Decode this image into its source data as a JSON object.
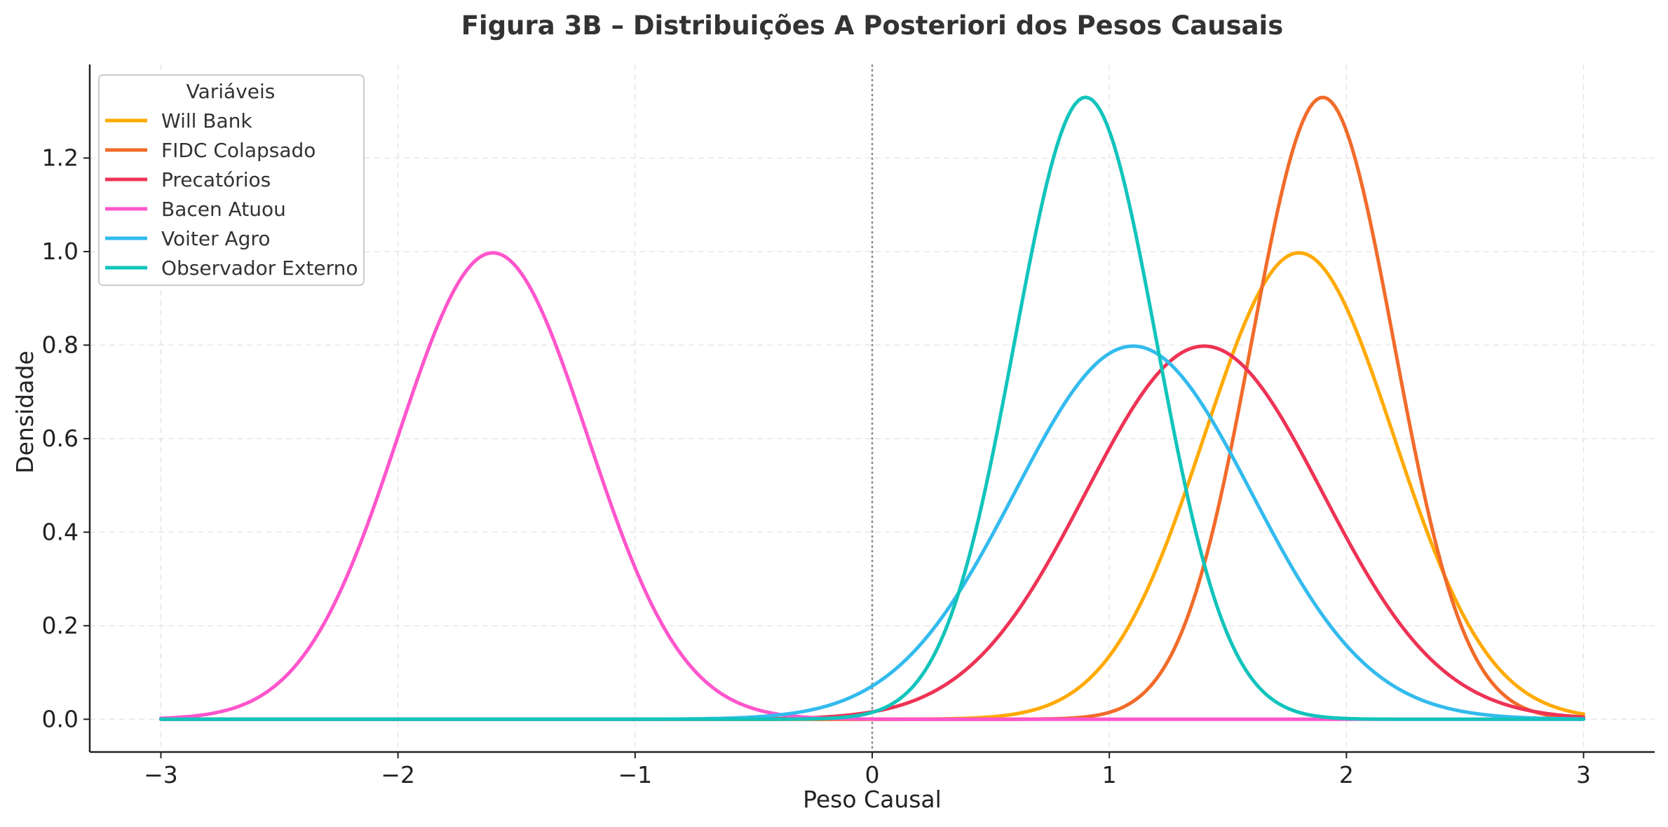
{
  "chart_data": {
    "type": "line",
    "title": "Figura 3B – Distribuições A Posteriori dos Pesos Causais",
    "xlabel": "Peso Causal",
    "ylabel": "Densidade",
    "xlim": [
      -3.3,
      3.3
    ],
    "ylim": [
      -0.07,
      1.4
    ],
    "xticks": [
      -3,
      -2,
      -1,
      0,
      1,
      2,
      3
    ],
    "xtick_labels": [
      "−3",
      "−2",
      "−1",
      "0",
      "1",
      "2",
      "3"
    ],
    "yticks": [
      0.0,
      0.2,
      0.4,
      0.6,
      0.8,
      1.0,
      1.2
    ],
    "ytick_labels": [
      "0.0",
      "0.2",
      "0.4",
      "0.6",
      "0.8",
      "1.0",
      "1.2"
    ],
    "x_range": [
      -3,
      3
    ],
    "grid": true,
    "vline_x": 0,
    "legend": {
      "title": "Variáveis",
      "position": "top-left"
    },
    "series": [
      {
        "name": "Will Bank",
        "color": "#FFAA00",
        "distribution": "normal",
        "mean": 1.8,
        "std": 0.4,
        "peak": 0.997
      },
      {
        "name": "FIDC Colapsado",
        "color": "#F26B2A",
        "distribution": "normal",
        "mean": 1.9,
        "std": 0.3,
        "peak": 1.33
      },
      {
        "name": "Precatórios",
        "color": "#EE3355",
        "distribution": "normal",
        "mean": 1.4,
        "std": 0.5,
        "peak": 0.798
      },
      {
        "name": "Bacen Atuou",
        "color": "#FF55CC",
        "distribution": "normal",
        "mean": -1.6,
        "std": 0.4,
        "peak": 0.997
      },
      {
        "name": "Voiter Agro",
        "color": "#33BBEE",
        "distribution": "normal",
        "mean": 1.1,
        "std": 0.5,
        "peak": 0.798
      },
      {
        "name": "Observador Externo",
        "color": "#11C4BB",
        "distribution": "normal",
        "mean": 0.9,
        "std": 0.3,
        "peak": 1.33
      }
    ]
  }
}
